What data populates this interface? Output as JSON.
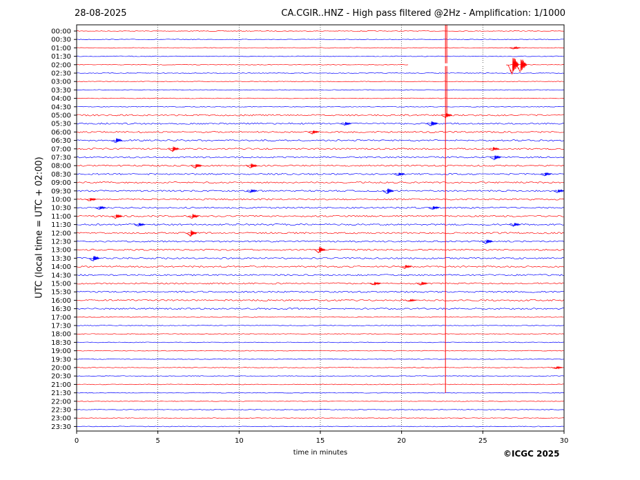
{
  "header": {
    "date": "28-08-2025",
    "title": "CA.CGIR..HNZ - High pass filtered @2Hz - Amplification: 1/1000"
  },
  "footer": {
    "copyright": "©ICGC 2025"
  },
  "chart_data": {
    "type": "line",
    "title": "CA.CGIR..HNZ - High pass filtered @2Hz - Amplification: 1/1000",
    "xlabel": "time in minutes",
    "ylabel": "UTC (local time = UTC + 02:00)",
    "xlim": [
      0,
      30
    ],
    "x_ticks": [
      0,
      5,
      10,
      15,
      20,
      25,
      30
    ],
    "vertical_grid": true,
    "trace_colors": [
      "#ff0000",
      "#0000ff"
    ],
    "rows": [
      "00:00",
      "00:30",
      "01:00",
      "01:30",
      "02:00",
      "02:30",
      "03:00",
      "03:30",
      "04:00",
      "04:30",
      "05:00",
      "05:30",
      "06:00",
      "06:30",
      "07:00",
      "07:30",
      "08:00",
      "08:30",
      "09:00",
      "09:30",
      "10:00",
      "10:30",
      "11:00",
      "11:30",
      "12:00",
      "12:30",
      "13:00",
      "13:30",
      "14:00",
      "14:30",
      "15:00",
      "15:30",
      "16:00",
      "16:30",
      "17:00",
      "17:30",
      "18:00",
      "18:30",
      "19:00",
      "19:30",
      "20:00",
      "20:30",
      "21:00",
      "21:30",
      "22:00",
      "22:30",
      "23:00",
      "23:30"
    ],
    "events": [
      {
        "row": 2,
        "minute": 26.9,
        "amplitude": 2
      },
      {
        "row": 4,
        "minute": 26.8,
        "amplitude": 16
      },
      {
        "row": 4,
        "minute": 27.3,
        "amplitude": 12
      },
      {
        "row": 10,
        "minute": 22.7,
        "amplitude": 4
      },
      {
        "row": 11,
        "minute": 16.5,
        "amplitude": 3
      },
      {
        "row": 11,
        "minute": 21.8,
        "amplitude": 4
      },
      {
        "row": 12,
        "minute": 14.5,
        "amplitude": 3
      },
      {
        "row": 13,
        "minute": 2.4,
        "amplitude": 4
      },
      {
        "row": 14,
        "minute": 5.9,
        "amplitude": 4
      },
      {
        "row": 14,
        "minute": 25.6,
        "amplitude": 3
      },
      {
        "row": 15,
        "minute": 25.7,
        "amplitude": 4
      },
      {
        "row": 16,
        "minute": 7.3,
        "amplitude": 4
      },
      {
        "row": 16,
        "minute": 10.7,
        "amplitude": 4
      },
      {
        "row": 17,
        "minute": 19.8,
        "amplitude": 3
      },
      {
        "row": 17,
        "minute": 28.8,
        "amplitude": 3
      },
      {
        "row": 19,
        "minute": 10.7,
        "amplitude": 3
      },
      {
        "row": 19,
        "minute": 19.1,
        "amplitude": 5
      },
      {
        "row": 19,
        "minute": 29.6,
        "amplitude": 3
      },
      {
        "row": 20,
        "minute": 0.8,
        "amplitude": 3
      },
      {
        "row": 21,
        "minute": 1.4,
        "amplitude": 3
      },
      {
        "row": 21,
        "minute": 21.9,
        "amplitude": 3
      },
      {
        "row": 22,
        "minute": 2.4,
        "amplitude": 4
      },
      {
        "row": 22,
        "minute": 7.1,
        "amplitude": 4
      },
      {
        "row": 23,
        "minute": 3.8,
        "amplitude": 3
      },
      {
        "row": 23,
        "minute": 26.9,
        "amplitude": 3
      },
      {
        "row": 24,
        "minute": 7.0,
        "amplitude": 5
      },
      {
        "row": 25,
        "minute": 25.2,
        "amplitude": 4
      },
      {
        "row": 26,
        "minute": 14.9,
        "amplitude": 5
      },
      {
        "row": 27,
        "minute": 1.0,
        "amplitude": 5
      },
      {
        "row": 28,
        "minute": 20.2,
        "amplitude": 3
      },
      {
        "row": 30,
        "minute": 18.3,
        "amplitude": 3
      },
      {
        "row": 30,
        "minute": 21.2,
        "amplitude": 3
      },
      {
        "row": 32,
        "minute": 20.5,
        "amplitude": 2
      },
      {
        "row": 40,
        "minute": 29.5,
        "amplitude": 2
      }
    ],
    "spike": {
      "minute": 22.7,
      "from_row": 0,
      "to_row": 43
    }
  }
}
